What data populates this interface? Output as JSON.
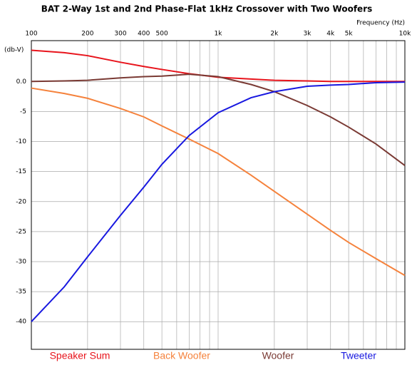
{
  "chart_data": {
    "type": "line",
    "title": "BAT 2-Way 1st and 2nd Phase-Flat 1kHz Crossover with Two Woofers",
    "x_label": "Frequency  (Hz)",
    "y_label": "(db-V)",
    "x_scale": "log",
    "grid": true,
    "x": [
      100,
      150,
      200,
      300,
      400,
      500,
      700,
      1000,
      1500,
      2000,
      3000,
      4000,
      5000,
      7000,
      10000
    ],
    "series": [
      {
        "name": "Speaker Sum",
        "color": "#e8141c",
        "values": [
          5.2,
          4.8,
          4.3,
          3.2,
          2.5,
          2.0,
          1.3,
          0.7,
          0.4,
          0.2,
          0.1,
          0.0,
          0.0,
          0.0,
          0.0
        ]
      },
      {
        "name": "Back Woofer",
        "color": "#f5823c",
        "values": [
          -1.1,
          -2.0,
          -2.8,
          -4.5,
          -5.9,
          -7.4,
          -9.6,
          -12.0,
          -15.6,
          -18.3,
          -22.1,
          -24.8,
          -26.8,
          -29.5,
          -32.3
        ]
      },
      {
        "name": "Woofer",
        "color": "#7a3a34",
        "values": [
          0.0,
          0.1,
          0.2,
          0.6,
          0.8,
          0.9,
          1.2,
          0.8,
          -0.5,
          -1.7,
          -4.0,
          -5.9,
          -7.6,
          -10.4,
          -14.0
        ]
      },
      {
        "name": "Tweeter",
        "color": "#1818e0",
        "values": [
          -40.0,
          -34.2,
          -29.2,
          -22.3,
          -17.6,
          -13.8,
          -9.0,
          -5.2,
          -2.7,
          -1.7,
          -0.8,
          -0.6,
          -0.5,
          -0.2,
          -0.1
        ]
      }
    ],
    "xlim": [
      100,
      10000
    ],
    "xticks": [
      100,
      200,
      300,
      400,
      500,
      {
        "value": 1000,
        "label": "1k"
      },
      {
        "value": 2000,
        "label": "2k"
      },
      {
        "value": 3000,
        "label": "3k"
      },
      {
        "value": 4000,
        "label": "4k"
      },
      {
        "value": 5000,
        "label": "5k"
      },
      {
        "value": 10000,
        "label": "10k"
      }
    ],
    "xgrid_minor": [
      600,
      700,
      800,
      900,
      6000,
      7000,
      8000,
      9000
    ],
    "ylim": [
      -44.6,
      6.8
    ],
    "yticks": [
      {
        "value": 0,
        "label": "0.0"
      },
      -5,
      -10,
      -15,
      -20,
      -25,
      -30,
      -35,
      -40
    ]
  }
}
